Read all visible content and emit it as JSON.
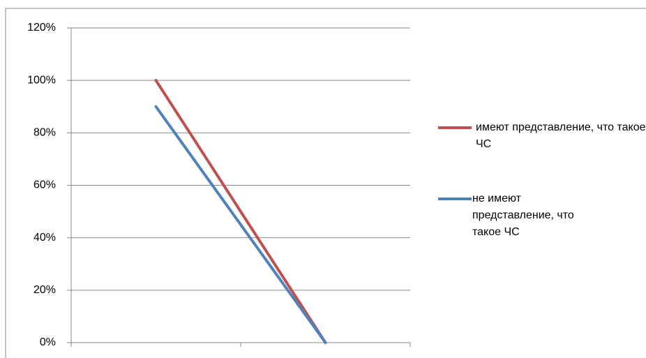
{
  "chart_data": {
    "type": "line",
    "categories": [
      null,
      null
    ],
    "series": [
      {
        "name": "имеют представление, что такое ЧС",
        "color": "#c0504d",
        "values": [
          100,
          0
        ]
      },
      {
        "name": "не имеют представление, что такое ЧС",
        "color": "#4f81bd",
        "values": [
          90,
          0
        ]
      }
    ],
    "ylim": [
      0,
      120
    ],
    "yticks": [
      {
        "value": 0,
        "label": "0%"
      },
      {
        "value": 20,
        "label": "20%"
      },
      {
        "value": 40,
        "label": "40%"
      },
      {
        "value": 60,
        "label": "60%"
      },
      {
        "value": 80,
        "label": "80%"
      },
      {
        "value": 100,
        "label": "100%"
      },
      {
        "value": 120,
        "label": "120%"
      }
    ],
    "grid": true,
    "legend": "right"
  }
}
